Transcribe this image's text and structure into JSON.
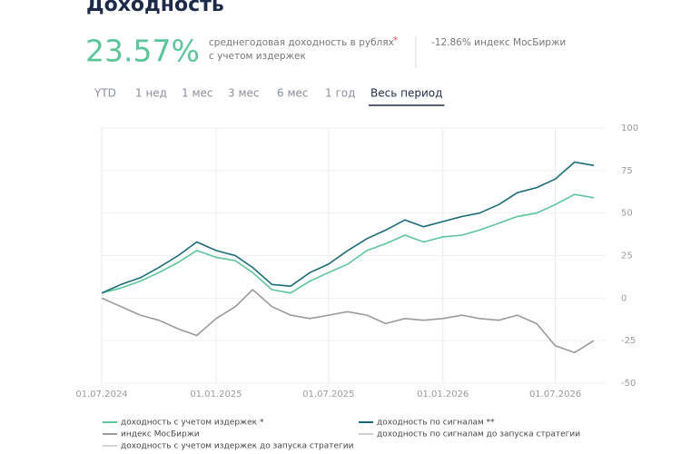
{
  "header": {
    "title": "Доходность",
    "return_value": "23.57%",
    "return_desc_1": "среднегодовая доходность в рублях",
    "return_star": "*",
    "return_desc_2": "с учетом издержек",
    "index_note": "-12.86% индекс МосБиржи"
  },
  "tabs": [
    "YTD",
    "1 нед",
    "1 мес",
    "3 мес",
    "6 мес",
    "1 год",
    "Весь период"
  ],
  "active_tab": 6,
  "chart_data": {
    "type": "line",
    "x": [
      "2024-07-01",
      "2024-08-01",
      "2024-09-01",
      "2024-10-01",
      "2024-11-01",
      "2024-12-01",
      "2025-01-01",
      "2025-02-01",
      "2025-03-01",
      "2025-04-01",
      "2025-05-01",
      "2025-06-01",
      "2025-07-01",
      "2025-08-01",
      "2025-09-01",
      "2025-10-01",
      "2025-11-01",
      "2025-12-01",
      "2026-01-01",
      "2026-02-01",
      "2026-03-01",
      "2026-04-01",
      "2026-05-01",
      "2026-06-01",
      "2026-07-01",
      "2026-08-01",
      "2026-09-01"
    ],
    "series": [
      {
        "name": "доходность с учетом издержек *",
        "color": "#5cc59a",
        "values": [
          3,
          6,
          10,
          15,
          21,
          28,
          24,
          22,
          15,
          5,
          3,
          10,
          15,
          20,
          28,
          32,
          37,
          33,
          36,
          37,
          40,
          44,
          48,
          50,
          55,
          61,
          59
        ]
      },
      {
        "name": "доходность по сигналам **",
        "color": "#1a6b78",
        "values": [
          3,
          8,
          12,
          18,
          25,
          33,
          28,
          25,
          18,
          8,
          7,
          15,
          20,
          28,
          35,
          40,
          46,
          42,
          45,
          48,
          50,
          55,
          62,
          65,
          70,
          80,
          78
        ]
      },
      {
        "name": "индекс МосБиржи",
        "color": "#9a9a9f",
        "values": [
          0,
          -5,
          -10,
          -13,
          -18,
          -22,
          -12,
          -5,
          5,
          -5,
          -10,
          -12,
          -10,
          -8,
          -10,
          -15,
          -12,
          -13,
          -12,
          -10,
          -12,
          -13,
          -10,
          -15,
          -28,
          -32,
          -25
        ]
      }
    ],
    "extra_legend": [
      {
        "name": "доходность по сигналам до запуска стратегии",
        "color": "#c9d3d6"
      },
      {
        "name": "доходность с учетом издержек до запуска стратегии",
        "color": "#d4d4d6"
      }
    ],
    "xlim": [
      "2024-06-28",
      "2026-09-20"
    ],
    "xticks": [
      {
        "value": "2024-07-01",
        "label": "01.07.2024"
      },
      {
        "value": "2025-01-01",
        "label": "01.01.2025"
      },
      {
        "value": "2025-07-01",
        "label": "01.07.2025"
      },
      {
        "value": "2026-01-01",
        "label": "01.01.2026"
      },
      {
        "value": "2026-07-01",
        "label": "01.07.2026"
      }
    ],
    "ylim": [
      -50,
      100
    ],
    "yticks": [
      -50,
      -25,
      0,
      25,
      50,
      75,
      100
    ],
    "grid": true
  }
}
